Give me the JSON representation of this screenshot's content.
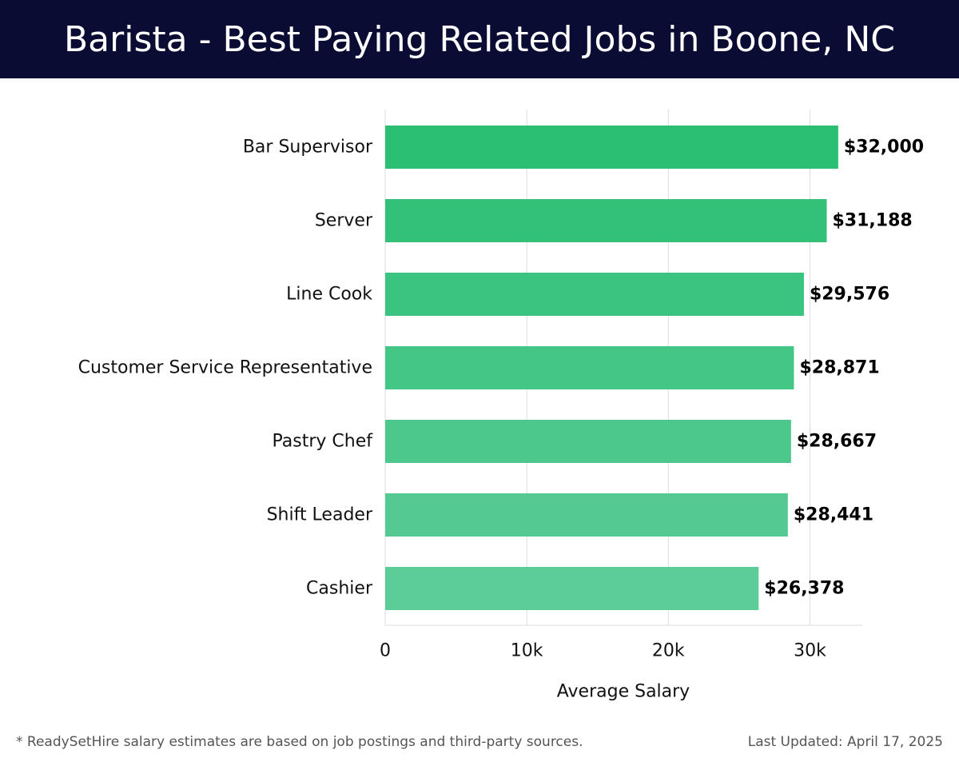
{
  "header": {
    "title": "Barista - Best Paying Related Jobs in Boone, NC"
  },
  "footer": {
    "note": "* ReadySetHire salary estimates are based on job postings and third-party sources.",
    "updated": "Last Updated: April 17, 2025"
  },
  "colors": {
    "bar_top": "#2bbf74",
    "bar_bottom": "#5ccc98",
    "header_bg": "#0b0c33"
  },
  "chart_data": {
    "type": "bar",
    "orientation": "horizontal",
    "categories": [
      "Bar Supervisor",
      "Server",
      "Line Cook",
      "Customer Service Representative",
      "Pastry Chef",
      "Shift Leader",
      "Cashier"
    ],
    "values": [
      32000,
      31188,
      29576,
      28871,
      28667,
      28441,
      26378
    ],
    "value_labels": [
      "$32,000",
      "$31,188",
      "$29,576",
      "$28,871",
      "$28,667",
      "$28,441",
      "$26,378"
    ],
    "xlabel": "Average Salary",
    "xticks": [
      0,
      10000,
      20000,
      30000
    ],
    "xtick_labels": [
      "0",
      "10k",
      "20k",
      "30k"
    ],
    "xlim": [
      0,
      33700
    ],
    "grid": true
  }
}
